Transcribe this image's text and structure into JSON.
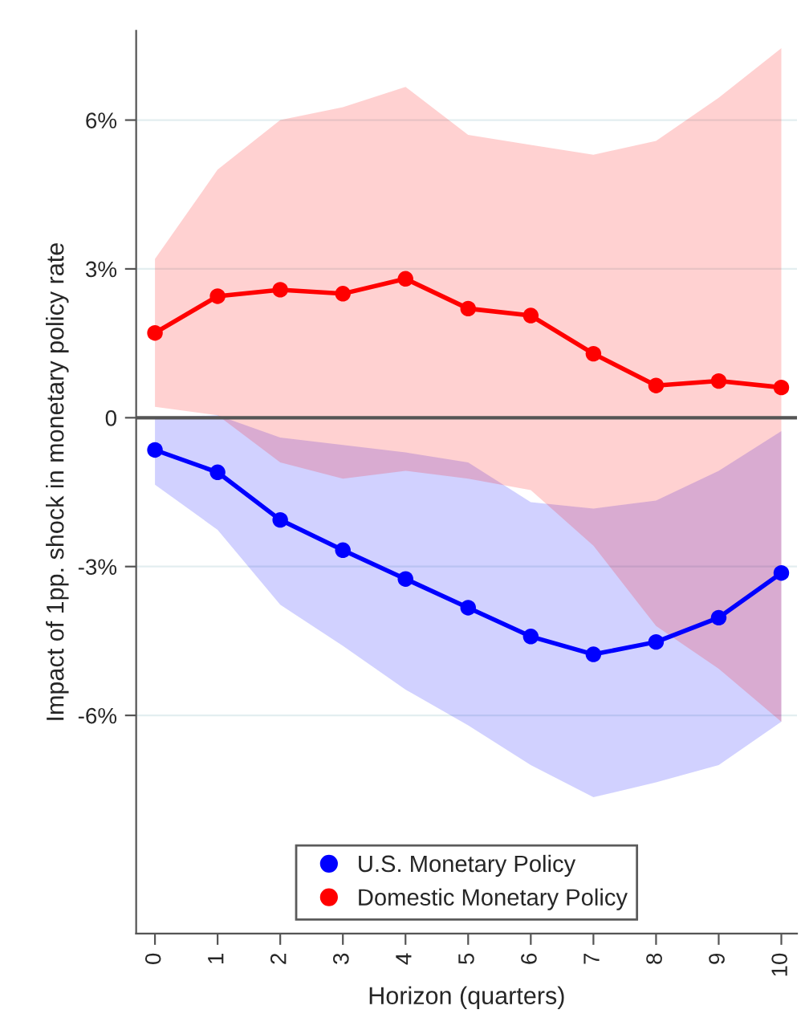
{
  "chart_data": {
    "type": "line",
    "xlabel": "Horizon (quarters)",
    "ylabel": "Impact of 1pp. shock in monetary policy rate",
    "x": [
      0,
      1,
      2,
      3,
      4,
      5,
      6,
      7,
      8,
      9,
      10
    ],
    "series": [
      {
        "name": "U.S. Monetary Policy",
        "color": "#0000ff",
        "values": [
          -0.65,
          -1.1,
          -2.06,
          -2.67,
          -3.25,
          -3.83,
          -4.41,
          -4.77,
          -4.52,
          -4.03,
          -3.13
        ],
        "lower": [
          -1.35,
          -2.26,
          -3.77,
          -4.6,
          -5.48,
          -6.2,
          -7.0,
          -7.65,
          -7.35,
          -7.0,
          -6.13
        ],
        "upper": [
          0.0,
          0.05,
          -0.4,
          -0.55,
          -0.7,
          -0.9,
          -1.7,
          -1.83,
          -1.67,
          -1.07,
          -0.27
        ]
      },
      {
        "name": "Domestic Monetary Policy",
        "color": "#ff0000",
        "values": [
          1.71,
          2.45,
          2.58,
          2.5,
          2.8,
          2.2,
          2.06,
          1.29,
          0.65,
          0.74,
          0.61
        ],
        "lower": [
          0.22,
          0.05,
          -0.9,
          -1.23,
          -1.07,
          -1.23,
          -1.46,
          -2.58,
          -4.2,
          -5.06,
          -6.13
        ],
        "upper": [
          3.2,
          5.0,
          6.0,
          6.26,
          6.67,
          5.7,
          5.5,
          5.3,
          5.58,
          6.45,
          7.45
        ]
      }
    ],
    "xlim": [
      -0.3,
      10.25
    ],
    "xticks": [
      0,
      1,
      2,
      3,
      4,
      5,
      6,
      7,
      8,
      9,
      10
    ],
    "ylim": [
      -10.4,
      7.8
    ],
    "yticks": [
      {
        "value": -6,
        "label": "-6%"
      },
      {
        "value": -3,
        "label": "-3%"
      },
      0,
      {
        "value": 3,
        "label": "3%"
      },
      {
        "value": 6,
        "label": "6%"
      }
    ],
    "ref_lines": [
      {
        "axis": "y",
        "value": 0,
        "color": "#555555"
      }
    ],
    "grid": "y",
    "legend": "bottom",
    "marker": "circle",
    "line_style": "solid"
  }
}
